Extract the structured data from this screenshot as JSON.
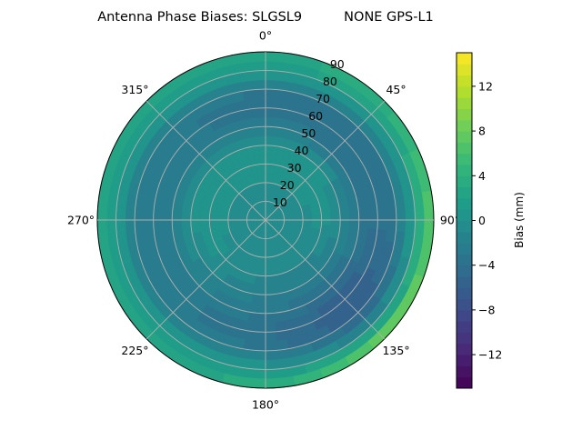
{
  "chart_data": {
    "type": "heatmap",
    "subtype": "polar-contour",
    "title": "Antenna Phase Biases: SLGSL9          NONE GPS-L1",
    "azimuth_labels": [
      "0°",
      "45°",
      "90°",
      "135°",
      "180°",
      "225°",
      "270°",
      "315°"
    ],
    "radial_labels": [
      "10",
      "20",
      "30",
      "40",
      "50",
      "60",
      "70",
      "80",
      "90"
    ],
    "radial_range": [
      0,
      90
    ],
    "azimuth_direction": "clockwise, 0° at top",
    "grid": true,
    "colormap": "viridis",
    "colorbar": {
      "label": "Bias (mm)",
      "range": [
        -15,
        15
      ],
      "ticks": [
        -12,
        -8,
        -4,
        0,
        4,
        8,
        12
      ],
      "tick_labels": [
        "−12",
        "−8",
        "−4",
        "0",
        "4",
        "8",
        "12"
      ],
      "placement": "right"
    },
    "azimuth_deg": [
      0,
      45,
      90,
      135,
      180,
      225,
      270,
      315
    ],
    "zenith_deg": [
      0,
      10,
      20,
      30,
      40,
      50,
      60,
      70,
      80,
      90
    ],
    "values_mm": [
      [
        0,
        0,
        0,
        0,
        0,
        0,
        0,
        0
      ],
      [
        -0.5,
        -0.5,
        -0.5,
        -1,
        -1,
        -0.5,
        -0.5,
        -0.5
      ],
      [
        0,
        0,
        -0.5,
        -1,
        -1,
        -0.5,
        0,
        0
      ],
      [
        1,
        1,
        0.5,
        -1,
        -1,
        0,
        1,
        1
      ],
      [
        0,
        0,
        -1,
        -2,
        -2,
        -1,
        0,
        0
      ],
      [
        -2,
        -3,
        -3,
        -4,
        -3,
        -2,
        -2,
        -2
      ],
      [
        -4,
        -4,
        -4,
        -6,
        -4,
        -3,
        -3,
        -3
      ],
      [
        -3,
        -3,
        -3,
        -6,
        -3,
        -2,
        -2,
        -2
      ],
      [
        1,
        2,
        2,
        0,
        1,
        1,
        1,
        1
      ],
      [
        3,
        4,
        8,
        10,
        4,
        3,
        3,
        3
      ]
    ]
  }
}
